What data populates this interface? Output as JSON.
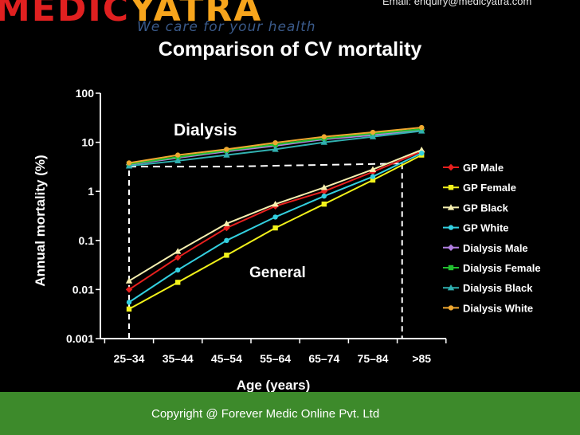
{
  "header": {
    "logo_left": "MEDIC",
    "logo_right": "YATRA",
    "tagline": "We care for your health",
    "email": "Email: enquiry@medicyatra.com"
  },
  "footer": {
    "copyright": "Copyright @ Forever Medic Online Pvt. Ltd"
  },
  "chart_data": {
    "type": "line",
    "title": "Comparison of CV mortality",
    "xlabel": "Age (years)",
    "ylabel": "Annual mortality (%)",
    "yscale": "log",
    "ylim": [
      0.001,
      100
    ],
    "yticks": [
      "0.001",
      "0.01",
      "0.1",
      "1",
      "10",
      "100"
    ],
    "categories": [
      "25–34",
      "35–44",
      "45–54",
      "55–64",
      "65–74",
      "75–84",
      ">85"
    ],
    "annotations": [
      "Dialysis",
      "General"
    ],
    "legend_position": "right",
    "series": [
      {
        "name": "GP Male",
        "color": "#e8201e",
        "marker": "diamond",
        "values": [
          0.01,
          0.045,
          0.18,
          0.5,
          1.0,
          2.5,
          6.5
        ]
      },
      {
        "name": "GP Female",
        "color": "#f2f21a",
        "marker": "square",
        "values": [
          0.004,
          0.014,
          0.05,
          0.18,
          0.55,
          1.7,
          5.5
        ]
      },
      {
        "name": "GP Black",
        "color": "#f7f0b0",
        "marker": "triangle",
        "values": [
          0.015,
          0.06,
          0.22,
          0.55,
          1.2,
          2.8,
          7.0
        ]
      },
      {
        "name": "GP White",
        "color": "#33d0e0",
        "marker": "circle",
        "values": [
          0.0055,
          0.025,
          0.1,
          0.3,
          0.8,
          2.0,
          6.0
        ]
      },
      {
        "name": "Dialysis Male",
        "color": "#b07ee0",
        "marker": "diamond",
        "values": [
          3.5,
          4.8,
          6.5,
          8.5,
          11.5,
          14.0,
          18.0
        ]
      },
      {
        "name": "Dialysis Female",
        "color": "#22c030",
        "marker": "square",
        "values": [
          3.6,
          5.0,
          6.8,
          9.0,
          12.0,
          15.0,
          18.5
        ]
      },
      {
        "name": "Dialysis Black",
        "color": "#30b0b0",
        "marker": "triangle",
        "values": [
          3.3,
          4.2,
          5.5,
          7.2,
          10.0,
          13.0,
          17.0
        ]
      },
      {
        "name": "Dialysis White",
        "color": "#f0a830",
        "marker": "circle",
        "values": [
          3.8,
          5.5,
          7.2,
          9.8,
          13.0,
          16.0,
          20.0
        ]
      }
    ]
  }
}
